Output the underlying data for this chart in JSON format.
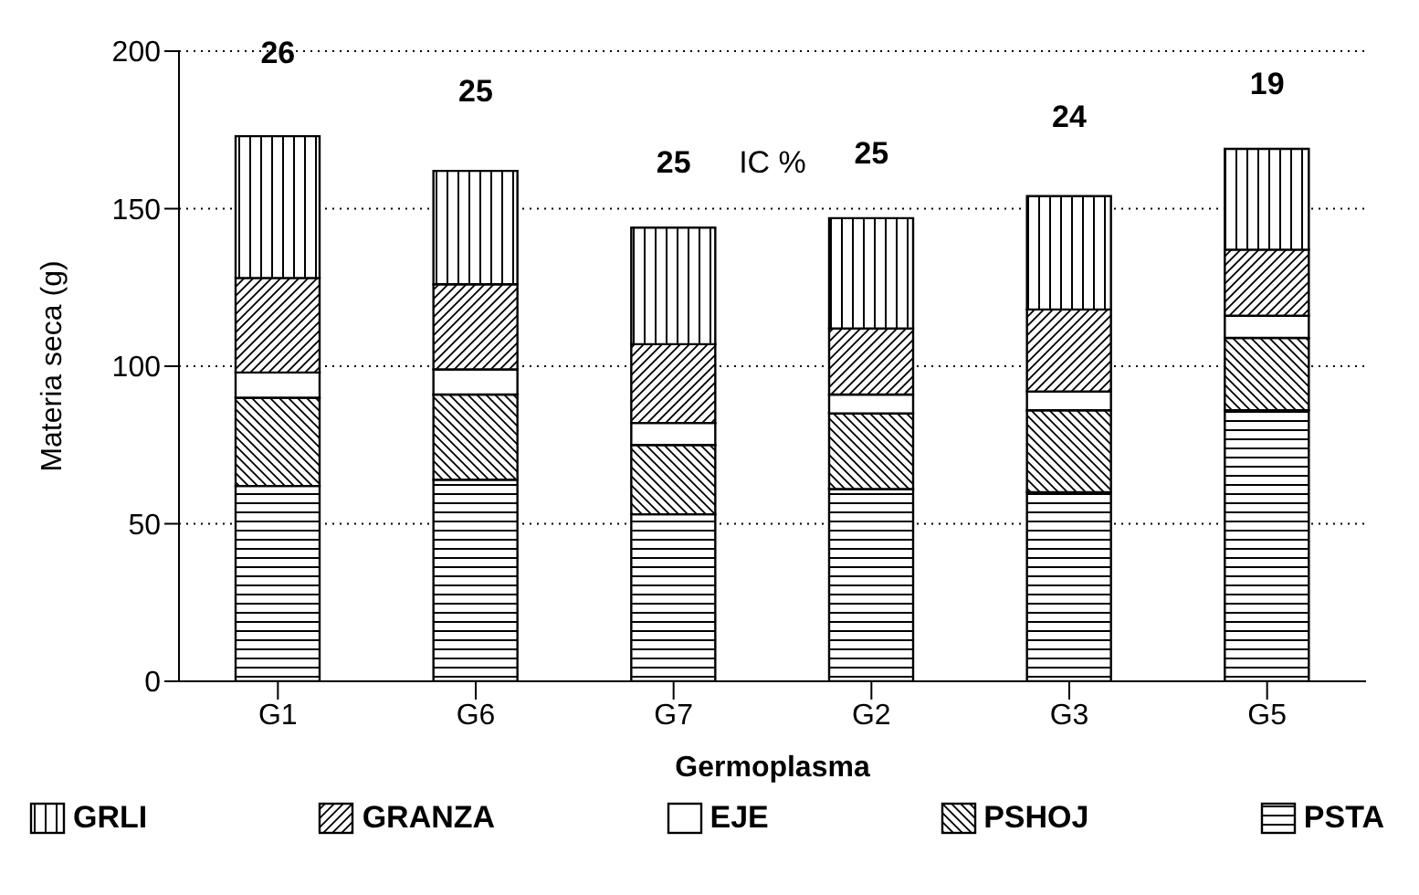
{
  "chart_data": {
    "type": "bar",
    "stacked": true,
    "xlabel": "Germoplasma",
    "ylabel": "Materia seca (g)",
    "categories": [
      "G1",
      "G6",
      "G7",
      "G2",
      "G3",
      "G5"
    ],
    "series": [
      {
        "name": "PSTA",
        "color": "#000000",
        "values": [
          62,
          64,
          53,
          61,
          60,
          86
        ]
      },
      {
        "name": "PSHOJ",
        "color": "#000000",
        "values": [
          28,
          27,
          22,
          24,
          26,
          23
        ]
      },
      {
        "name": "EJE",
        "color": "#ffffff",
        "values": [
          8,
          8,
          7,
          6,
          6,
          7
        ]
      },
      {
        "name": "GRANZA",
        "color": "#000000",
        "values": [
          30,
          27,
          25,
          21,
          26,
          21
        ]
      },
      {
        "name": "GRLI",
        "color": "#000000",
        "values": [
          45,
          36,
          37,
          35,
          36,
          32
        ]
      }
    ],
    "ylim": [
      0,
      200
    ],
    "yticks": [
      0,
      50,
      100,
      150,
      200
    ],
    "grid": "y",
    "legend": "bottom",
    "annotations": [
      "26",
      "25",
      "25",
      "IC %",
      "25",
      "24",
      "19"
    ]
  }
}
